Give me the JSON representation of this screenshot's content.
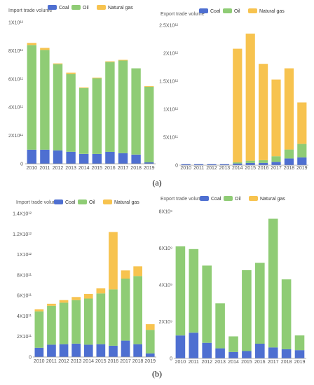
{
  "captions": [
    "(a)",
    "(b)"
  ],
  "colors": {
    "coal": "#4e6fd1",
    "oil": "#8fcc75",
    "gas": "#f7c34f",
    "axis": "#999999",
    "grid": "#eeeeee"
  },
  "chart_data": [
    {
      "type": "bar",
      "stacked": true,
      "ylabel": "Import trade volume",
      "legend": [
        "Coal",
        "Oil",
        "Natural gas"
      ],
      "categories": [
        "2010",
        "2011",
        "2012",
        "2013",
        "2014",
        "2015",
        "2016",
        "2017",
        "2018",
        "2019"
      ],
      "ymax": 10,
      "yticks": [
        0,
        2,
        4,
        6,
        8,
        10
      ],
      "ytick_labels": [
        "0",
        "2X10¹¹",
        "4X10¹¹",
        "6X10¹¹",
        "8X10¹¹",
        "1X10¹²"
      ],
      "series": [
        {
          "name": "Coal",
          "values": [
            1.0,
            1.0,
            0.95,
            0.85,
            0.7,
            0.7,
            0.85,
            0.75,
            0.65,
            0.1
          ]
        },
        {
          "name": "Oil",
          "values": [
            7.4,
            7.05,
            6.1,
            5.5,
            4.65,
            5.35,
            6.35,
            6.55,
            6.1,
            5.35
          ]
        },
        {
          "name": "Natural gas",
          "values": [
            0.15,
            0.15,
            0.05,
            0.1,
            0.05,
            0.05,
            0.05,
            0.05,
            0.0,
            0.05
          ]
        }
      ]
    },
    {
      "type": "bar",
      "stacked": true,
      "ylabel": "Export trade volume",
      "legend": [
        "Coal",
        "Oil",
        "Natural gas"
      ],
      "categories": [
        "2010",
        "2011",
        "2012",
        "2013",
        "2014",
        "2015",
        "2016",
        "2017",
        "2018",
        "2019"
      ],
      "ymax": 2.5,
      "yticks": [
        0,
        0.5,
        1.0,
        1.5,
        2.0,
        2.5
      ],
      "ytick_labels": [
        "0",
        "5X10¹¹",
        "1X10¹²",
        "1.5X10¹²",
        "2X10¹²",
        "2.5X10¹²"
      ],
      "series": [
        {
          "name": "Coal",
          "values": [
            0.02,
            0.02,
            0.02,
            0.02,
            0.03,
            0.04,
            0.04,
            0.06,
            0.12,
            0.14
          ]
        },
        {
          "name": "Oil",
          "values": [
            0.0,
            0.0,
            0.0,
            0.0,
            0.02,
            0.04,
            0.05,
            0.1,
            0.16,
            0.24
          ]
        },
        {
          "name": "Natural gas",
          "values": [
            0.0,
            0.0,
            0.0,
            0.0,
            2.03,
            2.27,
            1.72,
            1.37,
            1.45,
            0.74
          ]
        }
      ]
    },
    {
      "type": "bar",
      "stacked": true,
      "ylabel": "Import trade volume",
      "legend": [
        "Coal",
        "Oil",
        "Natural gas"
      ],
      "categories": [
        "2010",
        "2011",
        "2012",
        "2013",
        "2014",
        "2015",
        "2016",
        "2017",
        "2018",
        "2019"
      ],
      "ymax": 14,
      "yticks": [
        0,
        2,
        4,
        6,
        8,
        10,
        12,
        14
      ],
      "ytick_labels": [
        "0",
        "2X10¹¹",
        "4X10¹¹",
        "6X10¹¹",
        "8X10¹¹",
        "1X10¹²",
        "1.2X10¹²",
        "1.4X10¹²"
      ],
      "series": [
        {
          "name": "Coal",
          "values": [
            0.9,
            1.2,
            1.25,
            1.3,
            1.2,
            1.25,
            1.1,
            1.6,
            1.25,
            0.35
          ]
        },
        {
          "name": "Oil",
          "values": [
            3.55,
            3.8,
            4.05,
            4.25,
            4.5,
            4.95,
            5.5,
            6.05,
            6.65,
            2.3
          ]
        },
        {
          "name": "Natural gas",
          "values": [
            0.2,
            0.2,
            0.25,
            0.3,
            0.45,
            0.5,
            5.6,
            0.8,
            0.95,
            0.55
          ]
        }
      ]
    },
    {
      "type": "bar",
      "stacked": true,
      "ylabel": "Export trade volume",
      "legend": [
        "Coal",
        "Oil",
        "Natural gas"
      ],
      "categories": [
        "2010",
        "2011",
        "2012",
        "2013",
        "2014",
        "2015",
        "2016",
        "2017",
        "2018",
        "2019"
      ],
      "ymax": 8,
      "yticks": [
        0,
        2,
        4,
        6,
        8
      ],
      "ytick_labels": [
        "0",
        "2X10⁹",
        "4X10⁹",
        "6X10⁹",
        "8X10⁹"
      ],
      "series": [
        {
          "name": "Coal",
          "values": [
            1.25,
            1.4,
            0.85,
            0.55,
            0.35,
            0.4,
            0.8,
            0.6,
            0.5,
            0.45
          ]
        },
        {
          "name": "Oil",
          "values": [
            4.85,
            4.55,
            4.2,
            2.45,
            0.85,
            4.4,
            4.4,
            7.0,
            3.8,
            0.8
          ]
        },
        {
          "name": "Natural gas",
          "values": [
            0,
            0,
            0,
            0,
            0,
            0,
            0,
            0,
            0,
            0
          ]
        }
      ]
    }
  ]
}
